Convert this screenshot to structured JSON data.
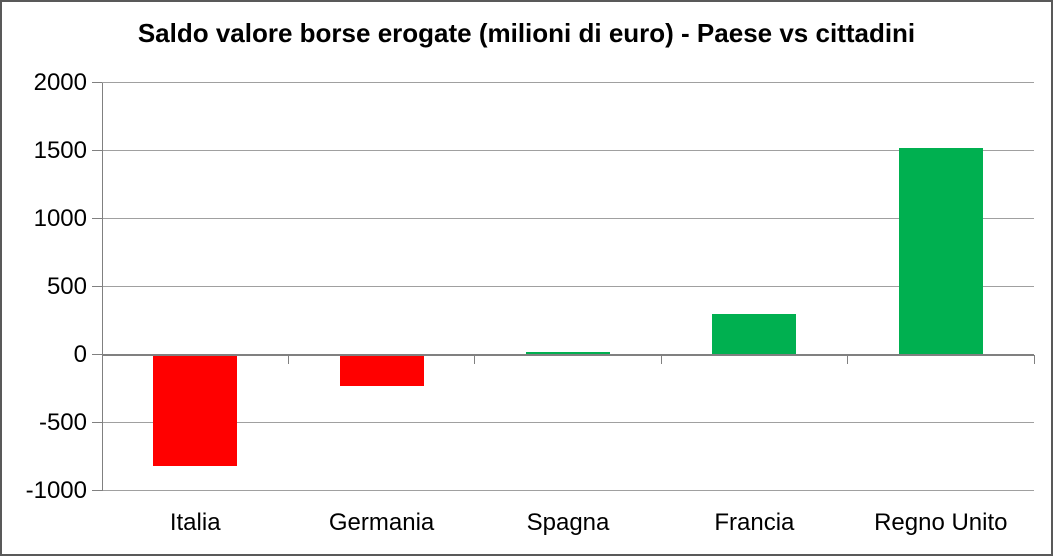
{
  "window": {
    "background": "#FFFFFF",
    "border_color": "#595959"
  },
  "chart_data": {
    "type": "bar",
    "title": "Saldo valore borse erogate (milioni di euro) - Paese vs cittadini",
    "categories": [
      "Italia",
      "Germania",
      "Spagna",
      "Francia",
      "Regno Unito"
    ],
    "values": [
      -810,
      -225,
      15,
      300,
      1515
    ],
    "xlabel": "",
    "ylabel": "",
    "ylim": [
      -1000,
      2000
    ],
    "y_ticks": [
      2000,
      1500,
      1000,
      500,
      0,
      -500,
      -1000
    ],
    "grid": true,
    "legend_position": "none",
    "colors": {
      "negative_bar": "#FF0000",
      "positive_bar": "#00B050",
      "gridline": "#A0A0A0",
      "axis": "#808080",
      "text": "#000000"
    }
  }
}
